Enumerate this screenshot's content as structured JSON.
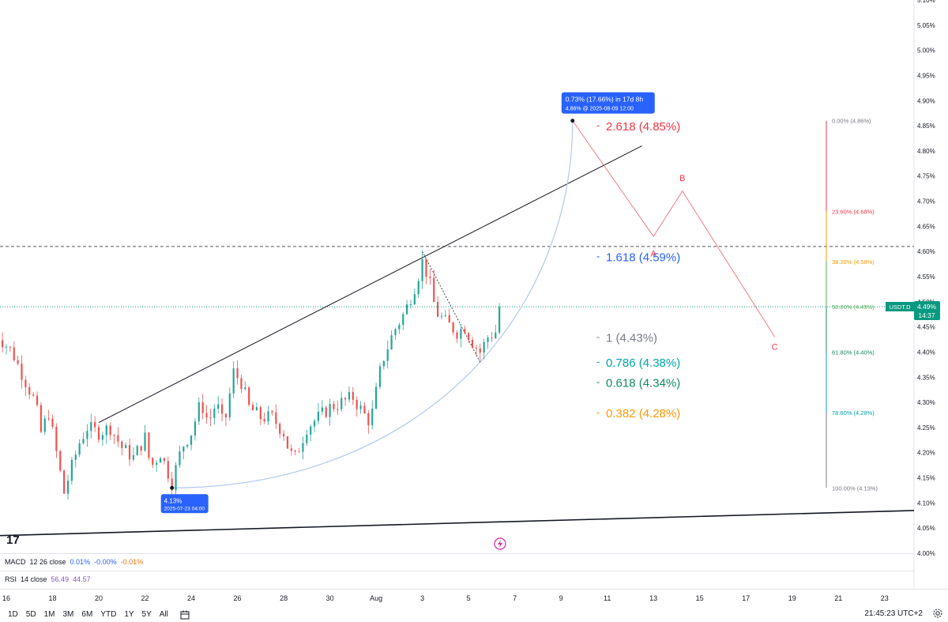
{
  "symbol": "USDT.D",
  "last_price": "4.49%",
  "countdown": "14:37",
  "colors": {
    "up": "#26a69a",
    "down": "#ef5350",
    "fib_red": "#f23645",
    "fib_blue": "#2962ff",
    "fib_gray": "#787b86",
    "fib_teal": "#00a6a6",
    "fib_green": "#138a5e",
    "fib_orange": "#ff9800",
    "wave": "#f77c80",
    "arc": "#b2c8f5",
    "label_bg": "#2962ff"
  },
  "chart_data": {
    "type": "candlestick",
    "y_axis": {
      "range": [
        4.0,
        5.1
      ],
      "ticks": [
        "5.10%",
        "5.05%",
        "5.00%",
        "4.95%",
        "4.90%",
        "4.85%",
        "4.80%",
        "4.75%",
        "4.70%",
        "4.65%",
        "4.60%",
        "4.55%",
        "4.50%",
        "4.45%",
        "4.40%",
        "4.35%",
        "4.30%",
        "4.25%",
        "4.20%",
        "4.15%",
        "4.10%",
        "4.05%",
        "4.00%"
      ]
    },
    "x_axis": {
      "range_days": [
        "2025-07-16",
        "2025-08-24"
      ],
      "ticks": [
        {
          "label": "16",
          "date": "2025-07-16"
        },
        {
          "label": "18",
          "date": "2025-07-18"
        },
        {
          "label": "20",
          "date": "2025-07-20"
        },
        {
          "label": "22",
          "date": "2025-07-22"
        },
        {
          "label": "24",
          "date": "2025-07-24"
        },
        {
          "label": "26",
          "date": "2025-07-26"
        },
        {
          "label": "28",
          "date": "2025-07-28"
        },
        {
          "label": "30",
          "date": "2025-07-30"
        },
        {
          "label": "Aug",
          "date": "2025-08-01"
        },
        {
          "label": "3",
          "date": "2025-08-03"
        },
        {
          "label": "5",
          "date": "2025-08-05"
        },
        {
          "label": "7",
          "date": "2025-08-07"
        },
        {
          "label": "9",
          "date": "2025-08-09"
        },
        {
          "label": "11",
          "date": "2025-08-11"
        },
        {
          "label": "13",
          "date": "2025-08-13"
        },
        {
          "label": "15",
          "date": "2025-08-15"
        },
        {
          "label": "17",
          "date": "2025-08-17"
        },
        {
          "label": "19",
          "date": "2025-08-19"
        },
        {
          "label": "21",
          "date": "2025-08-21"
        },
        {
          "label": "23",
          "date": "2025-08-23"
        }
      ]
    },
    "price_path": [
      [
        "2025-07-15 12:00",
        4.44
      ],
      [
        "2025-07-16 06:00",
        4.4
      ],
      [
        "2025-07-16 18:00",
        4.35
      ],
      [
        "2025-07-17 06:00",
        4.3
      ],
      [
        "2025-07-17 12:00",
        4.24
      ],
      [
        "2025-07-17 20:00",
        4.28
      ],
      [
        "2025-07-18 06:00",
        4.18
      ],
      [
        "2025-07-18 12:00",
        4.12
      ],
      [
        "2025-07-18 18:00",
        4.16
      ],
      [
        "2025-07-19 04:00",
        4.22
      ],
      [
        "2025-07-19 12:00",
        4.25
      ],
      [
        "2025-07-20 00:00",
        4.24
      ],
      [
        "2025-07-20 12:00",
        4.25
      ],
      [
        "2025-07-21 00:00",
        4.21
      ],
      [
        "2025-07-21 12:00",
        4.19
      ],
      [
        "2025-07-22 00:00",
        4.23
      ],
      [
        "2025-07-22 06:00",
        4.17
      ],
      [
        "2025-07-22 16:00",
        4.2
      ],
      [
        "2025-07-23 00:00",
        4.16
      ],
      [
        "2025-07-23 04:00",
        4.14
      ],
      [
        "2025-07-23 14:00",
        4.21
      ],
      [
        "2025-07-24 00:00",
        4.24
      ],
      [
        "2025-07-24 10:00",
        4.3
      ],
      [
        "2025-07-24 18:00",
        4.26
      ],
      [
        "2025-07-25 02:00",
        4.3
      ],
      [
        "2025-07-25 10:00",
        4.25
      ],
      [
        "2025-07-25 20:00",
        4.36
      ],
      [
        "2025-07-26 04:00",
        4.34
      ],
      [
        "2025-07-26 12:00",
        4.29
      ],
      [
        "2025-07-27 00:00",
        4.27
      ],
      [
        "2025-07-27 12:00",
        4.27
      ],
      [
        "2025-07-28 00:00",
        4.24
      ],
      [
        "2025-07-28 06:00",
        4.2
      ],
      [
        "2025-07-28 12:00",
        4.19
      ],
      [
        "2025-07-29 00:00",
        4.25
      ],
      [
        "2025-07-29 12:00",
        4.27
      ],
      [
        "2025-07-30 00:00",
        4.29
      ],
      [
        "2025-07-30 12:00",
        4.3
      ],
      [
        "2025-07-31 00:00",
        4.31
      ],
      [
        "2025-07-31 10:00",
        4.28
      ],
      [
        "2025-07-31 18:00",
        4.26
      ],
      [
        "2025-08-01 06:00",
        4.38
      ],
      [
        "2025-08-01 18:00",
        4.44
      ],
      [
        "2025-08-02 06:00",
        4.48
      ],
      [
        "2025-08-02 18:00",
        4.54
      ],
      [
        "2025-08-03 00:00",
        4.58
      ],
      [
        "2025-08-03 06:00",
        4.55
      ],
      [
        "2025-08-03 14:00",
        4.48
      ],
      [
        "2025-08-04 00:00",
        4.46
      ],
      [
        "2025-08-04 12:00",
        4.44
      ],
      [
        "2025-08-04 20:00",
        4.45
      ],
      [
        "2025-08-05 04:00",
        4.42
      ],
      [
        "2025-08-05 12:00",
        4.4
      ],
      [
        "2025-08-05 20:00",
        4.43
      ],
      [
        "2025-08-06 04:00",
        4.44
      ],
      [
        "2025-08-06 08:00",
        4.49
      ]
    ],
    "pattern_levels": {
      "upper_trendline": [
        [
          "2025-07-20 00:00",
          4.26
        ],
        [
          "2025-08-12 12:00",
          4.81
        ]
      ],
      "lower_trendline": [
        [
          "2025-07-15 00:00",
          4.035
        ],
        [
          "2025-08-24 12:00",
          4.085
        ]
      ],
      "resistance": 4.61,
      "current": 4.49
    },
    "wave_projection": {
      "points": [
        [
          "2025-08-09 12:00",
          4.86
        ],
        [
          "2025-08-13 00:00",
          4.63
        ],
        [
          "2025-08-14 06:00",
          4.72
        ],
        [
          "2025-08-18 06:00",
          4.43
        ]
      ],
      "labels": [
        {
          "text": "A",
          "date": "2025-08-13 00:00",
          "value": 4.59
        },
        {
          "text": "B",
          "date": "2025-08-14 06:00",
          "value": 4.74
        },
        {
          "text": "C",
          "date": "2025-08-18 06:00",
          "value": 4.405
        }
      ]
    },
    "projection_tooltip": {
      "line1": "0.73% (17.66%) in 17d 8h",
      "line2": "4.86% @ 2025-08-09  12:00",
      "date": "2025-08-09 12:00",
      "value": 4.86
    },
    "low_tooltip": {
      "line1": "4.13%",
      "line2": "2025-07-23 04:00",
      "date": "2025-07-23 04:00",
      "value": 4.13
    },
    "fib_extension": [
      {
        "ratio": "2.618",
        "label": "2.618 (4.85%)",
        "value": 4.85,
        "color": "fib_red"
      },
      {
        "ratio": "1.618",
        "label": "1.618 (4.59%)",
        "value": 4.59,
        "color": "fib_blue"
      },
      {
        "ratio": "1",
        "label": "1 (4.43%)",
        "value": 4.43,
        "color": "fib_gray"
      },
      {
        "ratio": "0.786",
        "label": "0.786 (4.38%)",
        "value": 4.38,
        "color": "fib_teal"
      },
      {
        "ratio": "0.618",
        "label": "0.618 (4.34%)",
        "value": 4.34,
        "color": "fib_green"
      },
      {
        "ratio": "0.382",
        "label": "0.382 (4.28%)",
        "value": 4.28,
        "color": "fib_orange"
      }
    ],
    "fib_retracement": [
      {
        "label": "0.00% (4.86%)",
        "value": 4.86,
        "color": "#787b86"
      },
      {
        "label": "23.60% (4.68%)",
        "value": 4.68,
        "color": "#f23645"
      },
      {
        "label": "38.20% (4.58%)",
        "value": 4.58,
        "color": "#ff9800"
      },
      {
        "label": "50.00% (4.49%)",
        "value": 4.49,
        "color": "#4caf50"
      },
      {
        "label": "61.80% (4.40%)",
        "value": 4.4,
        "color": "#138a5e"
      },
      {
        "label": "78.60% (4.28%)",
        "value": 4.28,
        "color": "#00a6a6"
      },
      {
        "label": "100.00% (4.13%)",
        "value": 4.13,
        "color": "#787b86"
      }
    ]
  },
  "macd": {
    "label": "MACD",
    "params": "12 26 close",
    "v1": "0.01%",
    "v2": "-0.00%",
    "v3": "-0.01%"
  },
  "rsi": {
    "label": "RSI",
    "params": "14 close",
    "v1": "56.49",
    "v2": "44.57"
  },
  "timeframes": [
    "1D",
    "5D",
    "1M",
    "3M",
    "6M",
    "YTD",
    "1Y",
    "5Y",
    "All"
  ],
  "time_display": "21:45:23 UTC+2",
  "logo_text": "17"
}
